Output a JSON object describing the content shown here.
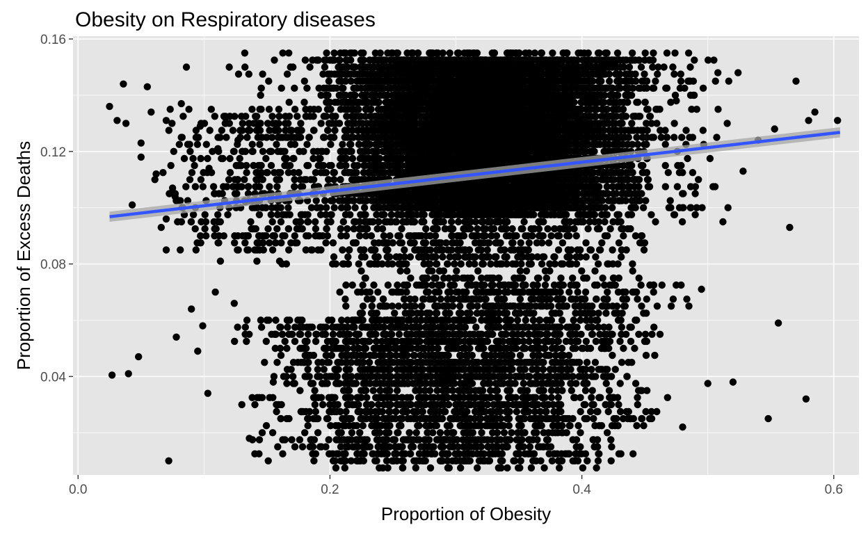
{
  "chart_data": {
    "type": "scatter",
    "title": "Obesity on Respiratory diseases",
    "xlabel": "Proportion of Obesity",
    "ylabel": "Proportion of Excess Deaths",
    "xlim": [
      -0.004,
      0.62
    ],
    "ylim": [
      0.005,
      0.161
    ],
    "x_ticks": [
      0.0,
      0.2,
      0.4,
      0.6
    ],
    "x_tick_labels": [
      "0.0",
      "0.2",
      "0.4",
      "0.6"
    ],
    "y_ticks": [
      0.04,
      0.08,
      0.12,
      0.16
    ],
    "y_tick_labels": [
      "0.04",
      "0.08",
      "0.12",
      "0.16"
    ],
    "grid": true,
    "legend": "none",
    "colors": {
      "panel_background": "#e5e5e5",
      "grid": "#ffffff",
      "points": "#000000",
      "trend_line": "#3355ff",
      "confidence_band": "#a6a6a6"
    },
    "trend_line": {
      "x": [
        0.025,
        0.605
      ],
      "y": [
        0.0968,
        0.1268
      ],
      "band_halfwidth": [
        0.0018,
        0.0018
      ]
    },
    "series": [
      {
        "outliers_x": [
          0.025,
          0.027,
          0.031,
          0.036,
          0.038,
          0.04,
          0.043,
          0.048,
          0.05,
          0.055,
          0.058,
          0.062,
          0.066,
          0.07,
          0.072,
          0.078,
          0.082,
          0.086,
          0.09,
          0.095,
          0.099,
          0.103,
          0.109,
          0.113,
          0.12,
          0.124,
          0.13,
          0.136,
          0.142,
          0.148,
          0.151,
          0.155,
          0.16,
          0.475,
          0.48,
          0.485,
          0.49,
          0.495,
          0.5,
          0.508,
          0.512,
          0.516,
          0.52,
          0.524,
          0.528,
          0.54,
          0.548,
          0.553,
          0.556,
          0.565,
          0.57,
          0.578,
          0.58,
          0.585,
          0.603,
          0.061,
          0.07,
          0.077,
          0.089,
          0.097,
          0.104,
          0.111,
          0.117,
          0.127,
          0.133,
          0.145,
          0.05,
          0.07,
          0.075
        ],
        "outliers_y": [
          0.136,
          0.0405,
          0.131,
          0.144,
          0.13,
          0.041,
          0.101,
          0.047,
          0.123,
          0.143,
          0.134,
          0.112,
          0.093,
          0.085,
          0.01,
          0.054,
          0.137,
          0.15,
          0.064,
          0.049,
          0.058,
          0.034,
          0.07,
          0.081,
          0.15,
          0.066,
          0.03,
          0.018,
          0.081,
          0.045,
          0.01,
          0.038,
          0.081,
          0.138,
          0.022,
          0.065,
          0.105,
          0.071,
          0.0375,
          0.148,
          0.095,
          0.1,
          0.038,
          0.148,
          0.113,
          0.124,
          0.025,
          0.128,
          0.059,
          0.093,
          0.145,
          0.032,
          0.131,
          0.134,
          0.131,
          0.11,
          0.131,
          0.104,
          0.12,
          0.129,
          0.114,
          0.121,
          0.132,
          0.124,
          0.102,
          0.112,
          0.118,
          0.096,
          0.107
        ],
        "band_ranges": [
          [
            0.095,
            0.156,
            0.11,
            0.53,
            1400
          ],
          [
            0.1,
            0.154,
            0.19,
            0.46,
            5500
          ],
          [
            0.098,
            0.15,
            0.23,
            0.42,
            4500
          ],
          [
            0.085,
            0.135,
            0.06,
            0.22,
            350
          ],
          [
            0.078,
            0.098,
            0.15,
            0.47,
            500
          ],
          [
            0.062,
            0.075,
            0.19,
            0.49,
            450
          ],
          [
            0.048,
            0.061,
            0.12,
            0.47,
            700
          ],
          [
            0.036,
            0.047,
            0.14,
            0.46,
            650
          ],
          [
            0.022,
            0.035,
            0.13,
            0.47,
            650
          ],
          [
            0.012,
            0.02,
            0.13,
            0.45,
            350
          ],
          [
            0.008,
            0.012,
            0.15,
            0.44,
            120
          ]
        ]
      }
    ]
  }
}
